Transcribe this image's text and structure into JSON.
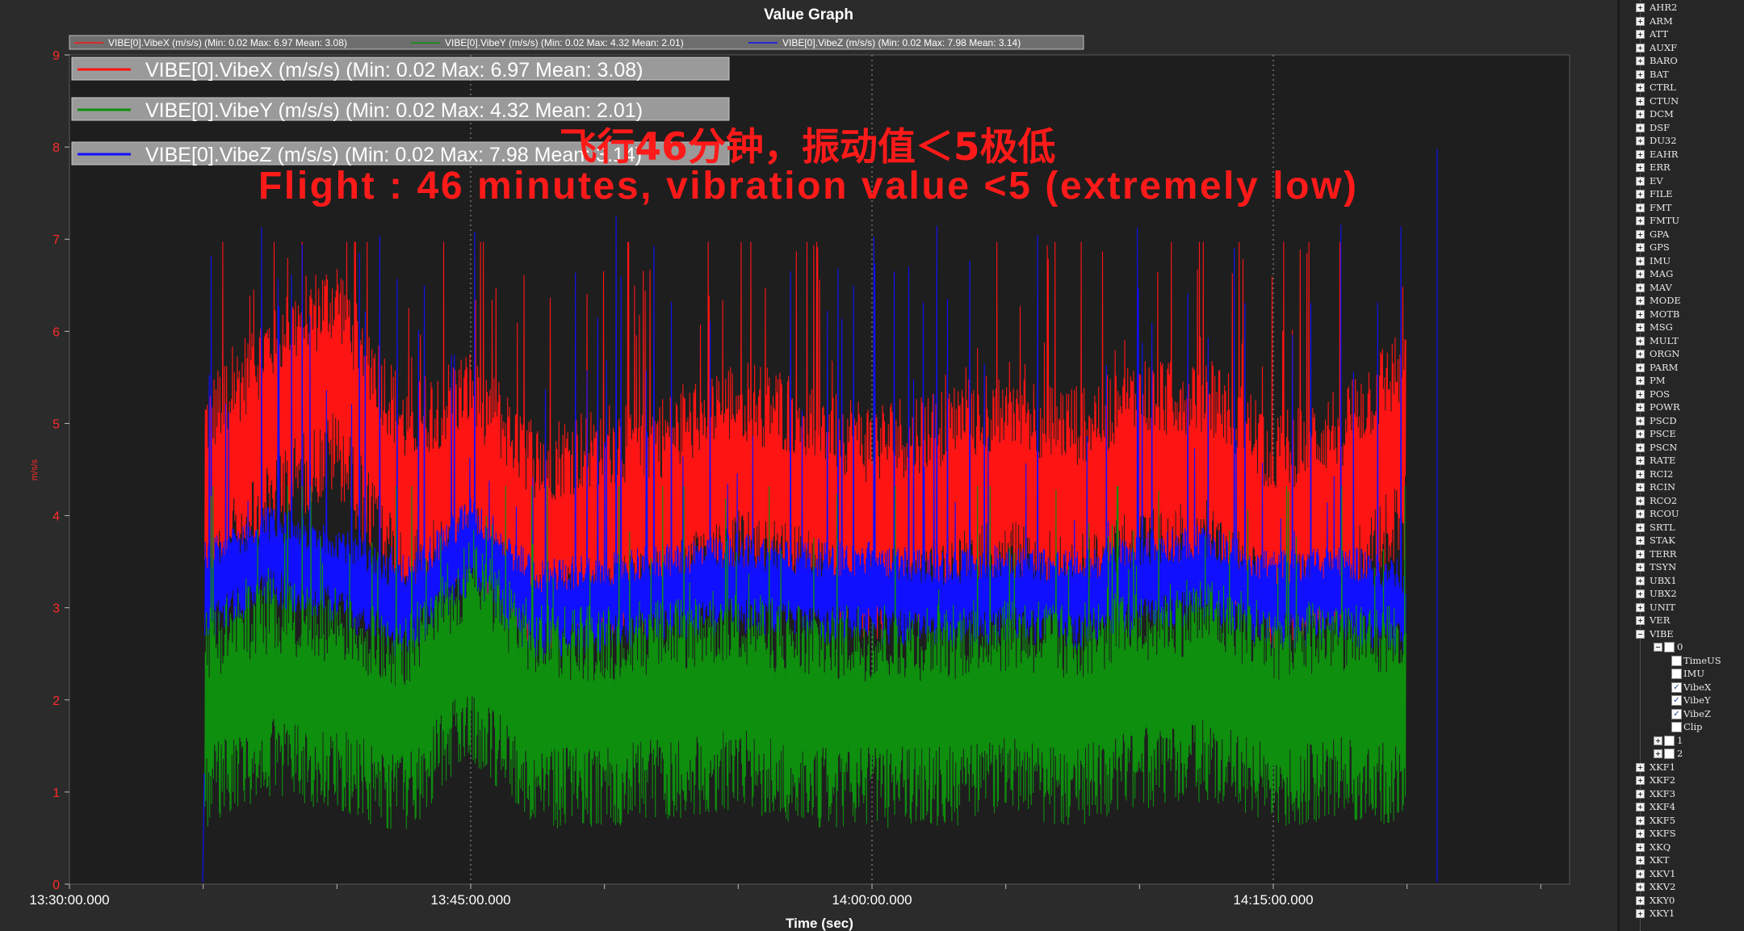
{
  "window": {
    "title": "Value Graph"
  },
  "annotation": {
    "line1": "飞行46分钟，振动值＜5极低",
    "line2": "Flight : 46 minutes, vibration value <5 (extremely low)",
    "color": "#ff1a1a"
  },
  "chart_data": {
    "type": "line",
    "title": "Value Graph",
    "xlabel": "Time (sec)",
    "ylabel": "m/s/s",
    "ylim": [
      0,
      9
    ],
    "y_ticks": [
      "0",
      "1",
      "2",
      "3",
      "4",
      "5",
      "6",
      "7",
      "8",
      "9"
    ],
    "x_ticks": [
      "13:30:00.000",
      "13:45:00.000",
      "14:00:00.000",
      "14:15:00.000"
    ],
    "grid": true,
    "legend_position": "top-left",
    "series": [
      {
        "name": "VIBE[0].VibeX (m/s/s)",
        "legend": "VIBE[0].VibeX (m/s/s)  (Min: 0.02 Max: 6.97 Mean: 3.08)",
        "color": "#ff1414",
        "min": 0.02,
        "max": 6.97,
        "mean": 3.08,
        "x": [
          "13:35:00",
          "13:37:30",
          "13:40:00",
          "13:42:30",
          "13:45:00",
          "13:47:30",
          "13:50:00",
          "13:52:30",
          "13:55:00",
          "13:57:30",
          "14:00:00",
          "14:02:30",
          "14:05:00",
          "14:07:30",
          "14:10:00",
          "14:12:30",
          "14:15:00",
          "14:17:30",
          "14:20:00"
        ],
        "values": [
          4.2,
          5.1,
          5.6,
          4.2,
          4.6,
          3.8,
          4.0,
          4.1,
          4.5,
          4.3,
          4.0,
          4.2,
          4.4,
          4.2,
          4.5,
          4.6,
          3.9,
          4.2,
          4.9
        ]
      },
      {
        "name": "VIBE[0].VibeY (m/s/s)",
        "legend": "VIBE[0].VibeY (m/s/s)  (Min: 0.02 Max: 4.32 Mean: 2.01)",
        "color": "#0e8f0e",
        "min": 0.02,
        "max": 4.32,
        "mean": 2.01,
        "x": [
          "13:35:00",
          "13:37:30",
          "13:40:00",
          "13:42:30",
          "13:45:00",
          "13:47:30",
          "13:50:00",
          "13:52:30",
          "13:55:00",
          "13:57:30",
          "14:00:00",
          "14:02:30",
          "14:05:00",
          "14:07:30",
          "14:10:00",
          "14:12:30",
          "14:15:00",
          "14:17:30",
          "14:20:00"
        ],
        "values": [
          1.9,
          2.2,
          2.1,
          1.8,
          2.6,
          1.9,
          1.9,
          2.0,
          2.1,
          1.9,
          1.9,
          1.9,
          2.0,
          1.9,
          2.1,
          2.2,
          1.9,
          2.0,
          1.9
        ]
      },
      {
        "name": "VIBE[0].VibeZ (m/s/s)",
        "legend": "VIBE[0].VibeZ (m/s/s)  (Min: 0.02 Max: 7.98 Mean: 3.14)",
        "color": "#1010ff",
        "min": 0.02,
        "max": 7.98,
        "mean": 3.14,
        "x": [
          "13:35:00",
          "13:37:30",
          "13:40:00",
          "13:42:30",
          "13:45:00",
          "13:47:30",
          "13:50:00",
          "13:52:30",
          "13:55:00",
          "13:57:30",
          "14:00:00",
          "14:02:30",
          "14:05:00",
          "14:07:30",
          "14:10:00",
          "14:12:30",
          "14:15:00",
          "14:17:30",
          "14:20:00"
        ],
        "values": [
          3.2,
          3.6,
          3.4,
          3.0,
          3.7,
          3.0,
          3.1,
          3.2,
          3.3,
          3.2,
          3.2,
          3.1,
          3.2,
          3.1,
          3.3,
          3.4,
          3.1,
          3.2,
          3.0
        ]
      }
    ]
  },
  "tree": {
    "items": [
      "AHR2",
      "ARM",
      "ATT",
      "AUXF",
      "BARO",
      "BAT",
      "CTRL",
      "CTUN",
      "DCM",
      "DSF",
      "DU32",
      "EAHR",
      "ERR",
      "EV",
      "FILE",
      "FMT",
      "FMTU",
      "GPA",
      "GPS",
      "IMU",
      "MAG",
      "MAV",
      "MODE",
      "MOTB",
      "MSG",
      "MULT",
      "ORGN",
      "PARM",
      "PM",
      "POS",
      "POWR",
      "PSCD",
      "PSCE",
      "PSCN",
      "RATE",
      "RCI2",
      "RCIN",
      "RCO2",
      "RCOU",
      "SRTL",
      "STAK",
      "TERR",
      "TSYN",
      "UBX1",
      "UBX2",
      "UNIT",
      "VER",
      "VIBE"
    ],
    "vibe_node": "0",
    "vibe_fields": [
      {
        "label": "TimeUS",
        "checked": false
      },
      {
        "label": "IMU",
        "checked": false
      },
      {
        "label": "VibeX",
        "checked": true
      },
      {
        "label": "VibeY",
        "checked": true
      },
      {
        "label": "VibeZ",
        "checked": true
      },
      {
        "label": "Clip",
        "checked": false
      }
    ],
    "vibe_more": [
      "1",
      "2"
    ],
    "after_items": [
      "XKF1",
      "XKF2",
      "XKF3",
      "XKF4",
      "XKF5",
      "XKFS",
      "XKQ",
      "XKT",
      "XKV1",
      "XKV2",
      "XKY0",
      "XKY1"
    ]
  }
}
